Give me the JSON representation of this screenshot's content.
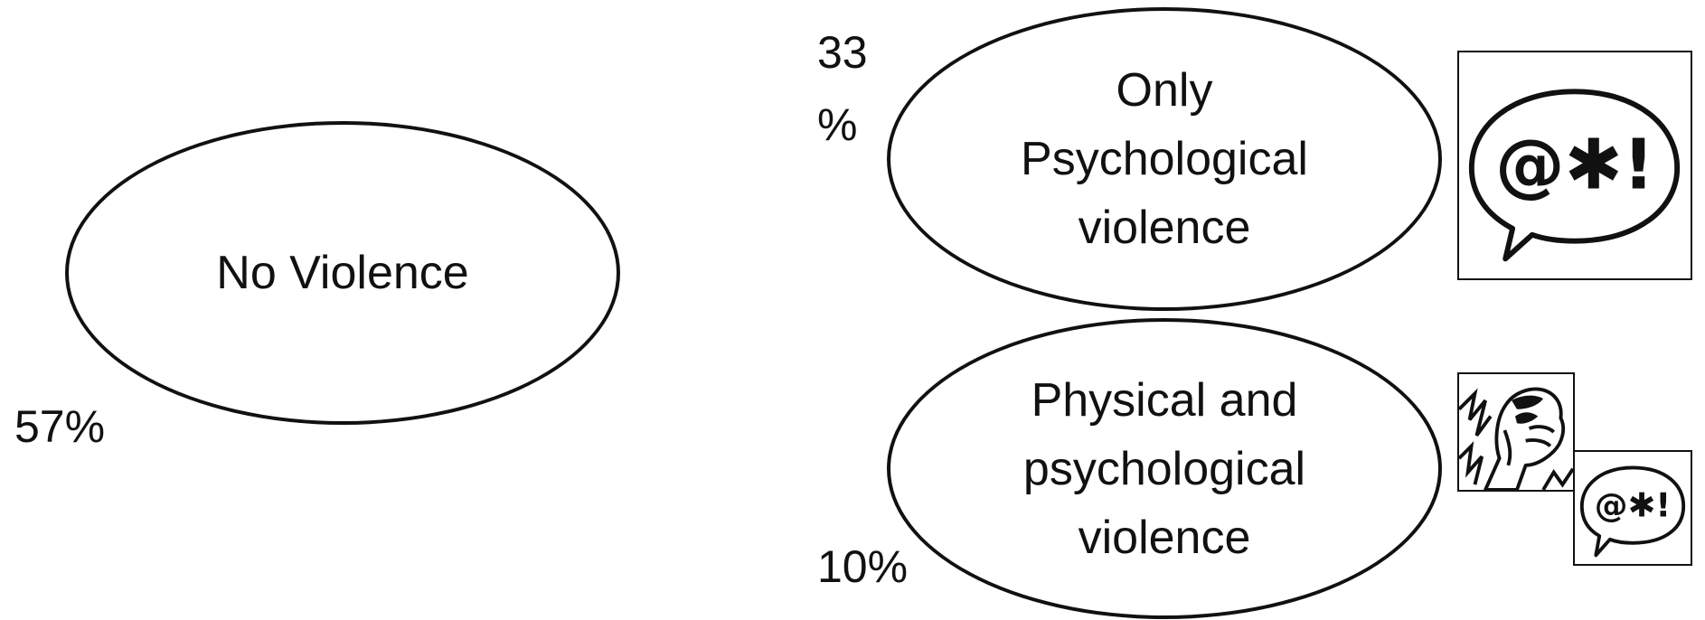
{
  "diagram": {
    "no_violence": {
      "label": "No Violence",
      "percent": "57%"
    },
    "only_psychological": {
      "label_lines": [
        "Only",
        "Psychological",
        "violence"
      ],
      "percent_lines": [
        "33",
        "%"
      ]
    },
    "physical_and_psychological": {
      "label_lines": [
        "Physical and",
        "psychological",
        "violence"
      ],
      "percent": "10%"
    },
    "icons": {
      "speech_bubble_symbols": "@✱!",
      "speech_bubble_icon": "cursing-speech-bubble-icon",
      "fist_icon": "raised-fist-icon"
    }
  }
}
